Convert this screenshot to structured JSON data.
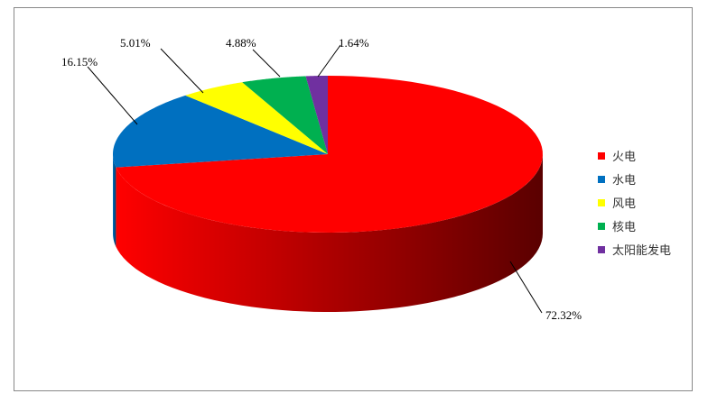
{
  "chart_data": {
    "type": "pie",
    "style": "3d",
    "legend_position": "right",
    "start": "top-clockwise",
    "slices": [
      {
        "name": "火电",
        "value": 72.32,
        "label": "72.32%",
        "color": "#ff0000",
        "dark": "#5a0000"
      },
      {
        "name": "水电",
        "value": 16.15,
        "label": "16.15%",
        "color": "#0070c0",
        "dark": "#003a66"
      },
      {
        "name": "风电",
        "value": 5.01,
        "label": "5.01%",
        "color": "#ffff00",
        "dark": "#888800"
      },
      {
        "name": "核电",
        "value": 4.88,
        "label": "4.88%",
        "color": "#00b050",
        "dark": "#005a28"
      },
      {
        "name": "太阳能发电",
        "value": 1.64,
        "label": "1.64%",
        "color": "#7030a0",
        "dark": "#3a1555"
      }
    ]
  }
}
